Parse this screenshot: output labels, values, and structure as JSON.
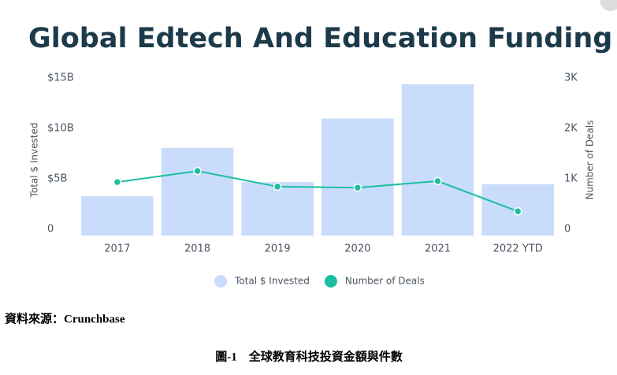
{
  "chart_data": {
    "type": "bar-line",
    "title": "Global Edtech And Education Funding",
    "y_label": "Total $ Invested",
    "y2_label": "Number of Deals",
    "categories": [
      "2017",
      "2018",
      "2019",
      "2020",
      "2021",
      "2022 YTD"
    ],
    "series": [
      {
        "name": "Total $ Invested",
        "type": "bar",
        "color": "#cadcfb",
        "values": [
          3.9,
          8.7,
          5.3,
          11.6,
          15.0,
          5.1
        ]
      },
      {
        "name": "Number of Deals",
        "type": "line",
        "axis": "y2",
        "color": "#1bbf9f",
        "values": [
          1060,
          1280,
          970,
          950,
          1080,
          480
        ]
      }
    ],
    "ylim": [
      0,
      15
    ],
    "yticks": [
      0,
      {
        "value": 5,
        "label": "$5B"
      },
      {
        "value": 10,
        "label": "$10B"
      },
      {
        "value": 15,
        "label": "$15B"
      }
    ],
    "y2lim": [
      0,
      3000
    ],
    "y2ticks": [
      0,
      {
        "value": 1000,
        "label": "1K"
      },
      {
        "value": 2000,
        "label": "2K"
      },
      {
        "value": 3000,
        "label": "3K"
      }
    ],
    "grid": false,
    "legend": "bottom"
  },
  "source": "資料來源：Crunchbase",
  "caption": "圖-1　全球教育科技投資金額與件數"
}
